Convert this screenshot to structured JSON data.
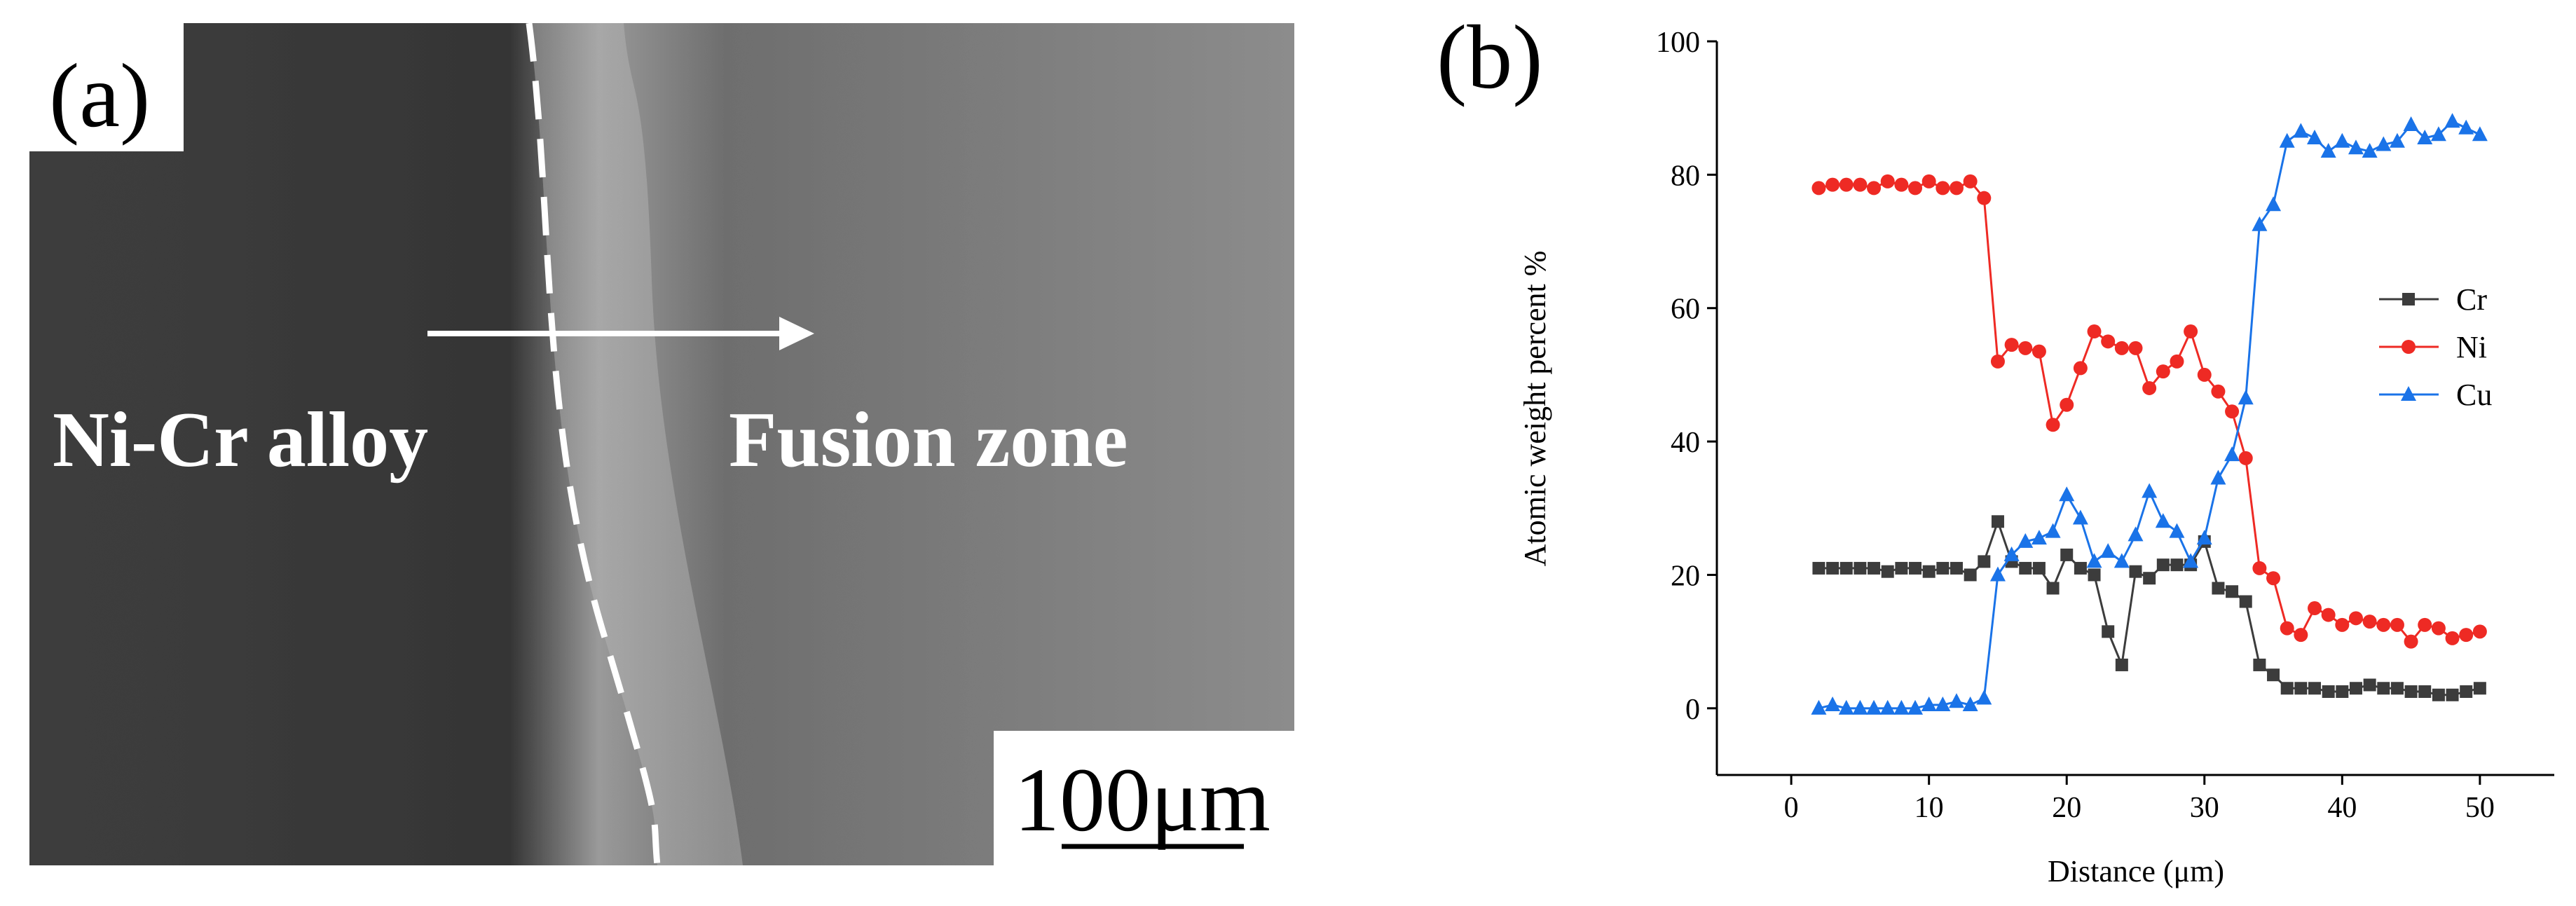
{
  "panel_a": {
    "label": "(a)",
    "left_region": "Ni-Cr alloy",
    "right_region": "Fusion zone",
    "scale_bar": "100μm"
  },
  "chart_data": {
    "type": "line",
    "panel_label": "(b)",
    "x_label": "Distance (μm)",
    "y_label": "Atomic weight percent %",
    "x": [
      2,
      3,
      4,
      5,
      6,
      7,
      8,
      9,
      10,
      11,
      12,
      13,
      14,
      15,
      16,
      17,
      18,
      19,
      20,
      21,
      22,
      23,
      24,
      25,
      26,
      27,
      28,
      29,
      30,
      31,
      32,
      33,
      34,
      35,
      36,
      37,
      38,
      39,
      40,
      41,
      42,
      43,
      44,
      45,
      46,
      47,
      48,
      49,
      50
    ],
    "series": [
      {
        "name": "Cr",
        "color": "#3c3c3c",
        "marker": "square",
        "values": [
          21,
          21,
          21,
          21,
          21,
          20.5,
          21,
          21,
          20.5,
          21,
          21,
          20,
          22,
          28,
          22,
          21,
          21,
          18,
          23,
          21,
          20,
          11.5,
          6.5,
          20.5,
          19.5,
          21.5,
          21.5,
          21.5,
          25,
          18,
          17.5,
          16,
          6.5,
          5,
          3,
          3,
          3,
          2.5,
          2.5,
          3,
          3.5,
          3,
          3,
          2.5,
          2.5,
          2,
          2,
          2.5,
          3
        ]
      },
      {
        "name": "Ni",
        "color": "#ee2a24",
        "marker": "circle",
        "values": [
          78,
          78.5,
          78.5,
          78.5,
          78,
          79,
          78.5,
          78,
          79,
          78,
          78,
          79,
          76.5,
          52,
          54.5,
          54,
          53.5,
          42.5,
          45.5,
          51,
          56.5,
          55,
          54,
          54,
          48,
          50.5,
          52,
          56.5,
          50,
          47.5,
          44.5,
          37.5,
          21,
          19.5,
          12,
          11,
          15,
          14,
          12.5,
          13.5,
          13,
          12.5,
          12.5,
          10,
          12.5,
          12,
          10.5,
          11,
          11.5
        ]
      },
      {
        "name": "Cu",
        "color": "#1a73e8",
        "marker": "triangle",
        "values": [
          0,
          0.5,
          0,
          0,
          0,
          0,
          0,
          0,
          0.5,
          0.5,
          1,
          0.5,
          1.5,
          20,
          23,
          25,
          25.5,
          26.5,
          32,
          28.5,
          22,
          23.5,
          22,
          26,
          32.5,
          28,
          26.5,
          22,
          25.5,
          34.5,
          38,
          46.5,
          72.5,
          75.5,
          85,
          86.5,
          85.5,
          83.5,
          85,
          84,
          83.5,
          84.5,
          85,
          87.5,
          85.5,
          86,
          88,
          87,
          86
        ]
      }
    ],
    "xlim": [
      -5.4,
      55.4
    ],
    "ylim": [
      -10,
      100
    ],
    "xticks": [
      0,
      10,
      20,
      30,
      40,
      50
    ],
    "yticks": [
      0,
      20,
      40,
      60,
      80,
      100
    ],
    "legend": "right"
  }
}
